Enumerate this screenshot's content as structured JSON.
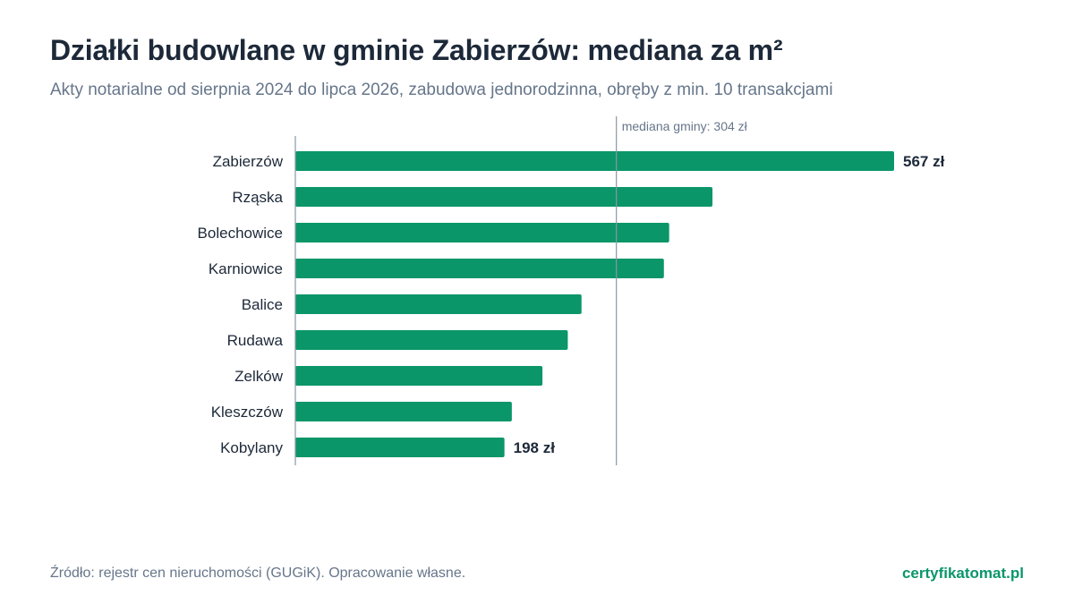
{
  "header": {
    "title": "Działki budowlane w gminie Zabierzów: mediana za m²",
    "subtitle": "Akty notarialne od sierpnia 2024 do lipca 2026, zabudowa jednorodzinna, obręby z min. 10 transakcjami"
  },
  "footer": {
    "source": "Źródło: rejestr cen nieruchomości (GUGiK). Opracowanie własne.",
    "brand": "certyfikatomat.pl"
  },
  "colors": {
    "bar": "#0a9669",
    "axis": "#8a96a3",
    "label_text": "#1d2939",
    "muted_text": "#66768a"
  },
  "chart_data": {
    "type": "bar",
    "orientation": "horizontal",
    "categories": [
      "Zabierzów",
      "Rząska",
      "Bolechowice",
      "Karniowice",
      "Balice",
      "Rudawa",
      "Zelków",
      "Kleszczów",
      "Kobylany"
    ],
    "values": [
      567,
      395,
      354,
      349,
      271,
      258,
      234,
      205,
      198
    ],
    "value_labels": [
      {
        "category": "Zabierzów",
        "text": "567 zł"
      },
      {
        "category": "Kobylany",
        "text": "198 zł"
      }
    ],
    "reference_line": {
      "value": 304,
      "label": "mediana gminy: 304 zł"
    },
    "xlim": [
      0,
      567
    ],
    "grid": false,
    "legend": "none"
  }
}
